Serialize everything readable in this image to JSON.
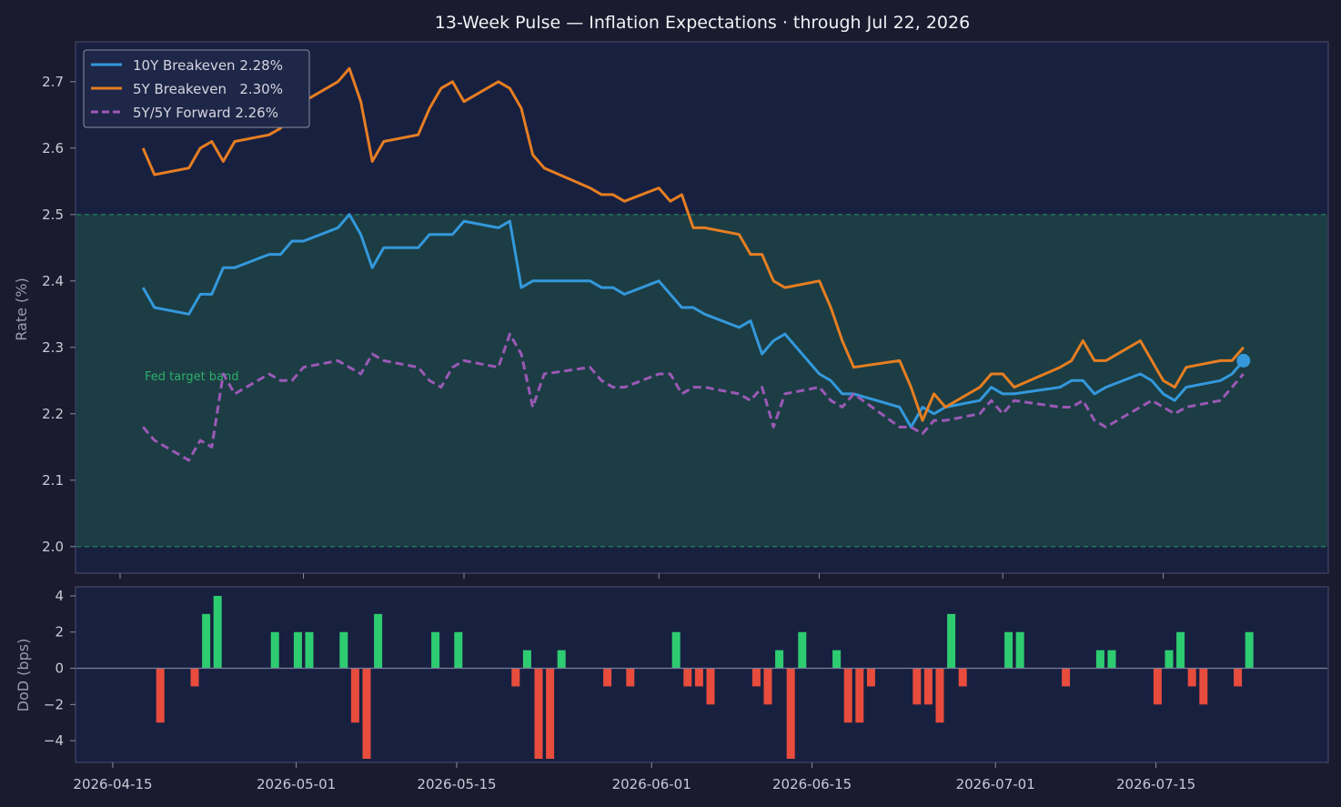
{
  "chart_data": [
    {
      "type": "line",
      "title": "13-Week Pulse — Inflation Expectations  ·  through Jul 22, 2026",
      "ylabel": "Rate (%)",
      "ylim": [
        1.96,
        2.76
      ],
      "yticks": [
        "2.0",
        "2.1",
        "2.2",
        "2.3",
        "2.4",
        "2.5",
        "2.6",
        "2.7"
      ],
      "grid": false,
      "legend": "top-left",
      "band": {
        "low": 2.0,
        "high": 2.5,
        "label": "Fed target band",
        "color": "#2fae6a"
      },
      "dates": [
        "2026-04-17",
        "2026-04-18",
        "2026-04-21",
        "2026-04-22",
        "2026-04-23",
        "2026-04-24",
        "2026-04-25",
        "2026-04-28",
        "2026-04-29",
        "2026-04-30",
        "2026-05-01",
        "2026-05-04",
        "2026-05-05",
        "2026-05-06",
        "2026-05-07",
        "2026-05-08",
        "2026-05-11",
        "2026-05-12",
        "2026-05-13",
        "2026-05-14",
        "2026-05-15",
        "2026-05-18",
        "2026-05-19",
        "2026-05-20",
        "2026-05-21",
        "2026-05-22",
        "2026-05-26",
        "2026-05-27",
        "2026-05-28",
        "2026-05-29",
        "2026-06-01",
        "2026-06-02",
        "2026-06-03",
        "2026-06-04",
        "2026-06-05",
        "2026-06-08",
        "2026-06-09",
        "2026-06-10",
        "2026-06-11",
        "2026-06-12",
        "2026-06-15",
        "2026-06-16",
        "2026-06-17",
        "2026-06-18",
        "2026-06-22",
        "2026-06-23",
        "2026-06-24",
        "2026-06-25",
        "2026-06-26",
        "2026-06-29",
        "2026-06-30",
        "2026-07-01",
        "2026-07-02",
        "2026-07-06",
        "2026-07-07",
        "2026-07-08",
        "2026-07-09",
        "2026-07-10",
        "2026-07-13",
        "2026-07-14",
        "2026-07-15",
        "2026-07-16",
        "2026-07-17",
        "2026-07-20",
        "2026-07-21",
        "2026-07-22"
      ],
      "series": [
        {
          "name": "10Y Breakeven  2.28%",
          "color": "#3498db",
          "dashed": false,
          "last_marker": true,
          "values": [
            2.39,
            2.36,
            2.35,
            2.38,
            2.38,
            2.42,
            2.42,
            2.44,
            2.44,
            2.46,
            2.46,
            2.48,
            2.5,
            2.47,
            2.42,
            2.45,
            2.45,
            2.47,
            2.47,
            2.47,
            2.49,
            2.48,
            2.49,
            2.39,
            2.4,
            2.4,
            2.4,
            2.39,
            2.39,
            2.38,
            2.4,
            2.38,
            2.36,
            2.36,
            2.35,
            2.33,
            2.34,
            2.29,
            2.31,
            2.32,
            2.26,
            2.25,
            2.23,
            2.23,
            2.21,
            2.18,
            2.21,
            2.2,
            2.21,
            2.22,
            2.24,
            2.23,
            2.23,
            2.24,
            2.25,
            2.25,
            2.23,
            2.24,
            2.26,
            2.25,
            2.23,
            2.22,
            2.24,
            2.25,
            2.26,
            2.28
          ]
        },
        {
          "name": "5Y Breakeven   2.30%",
          "color": "#e67e22",
          "dashed": false,
          "last_marker": false,
          "values": [
            2.6,
            2.56,
            2.57,
            2.6,
            2.61,
            2.58,
            2.61,
            2.62,
            2.63,
            2.67,
            2.67,
            2.7,
            2.72,
            2.67,
            2.58,
            2.61,
            2.62,
            2.66,
            2.69,
            2.7,
            2.67,
            2.7,
            2.69,
            2.66,
            2.59,
            2.57,
            2.54,
            2.53,
            2.53,
            2.52,
            2.54,
            2.52,
            2.53,
            2.48,
            2.48,
            2.47,
            2.44,
            2.44,
            2.4,
            2.39,
            2.4,
            2.36,
            2.31,
            2.27,
            2.28,
            2.24,
            2.19,
            2.23,
            2.21,
            2.24,
            2.26,
            2.26,
            2.24,
            2.27,
            2.28,
            2.31,
            2.28,
            2.28,
            2.31,
            2.28,
            2.25,
            2.24,
            2.27,
            2.28,
            2.28,
            2.3
          ]
        },
        {
          "name": "5Y/5Y Forward  2.26%",
          "color": "#9b59b6",
          "dashed": true,
          "last_marker": false,
          "values": [
            2.18,
            2.16,
            2.13,
            2.16,
            2.15,
            2.26,
            2.23,
            2.26,
            2.25,
            2.25,
            2.27,
            2.28,
            2.27,
            2.26,
            2.29,
            2.28,
            2.27,
            2.25,
            2.24,
            2.27,
            2.28,
            2.27,
            2.32,
            2.29,
            2.21,
            2.26,
            2.27,
            2.25,
            2.24,
            2.24,
            2.26,
            2.26,
            2.23,
            2.24,
            2.24,
            2.23,
            2.22,
            2.24,
            2.18,
            2.23,
            2.24,
            2.22,
            2.21,
            2.23,
            2.18,
            2.18,
            2.17,
            2.19,
            2.19,
            2.2,
            2.22,
            2.2,
            2.22,
            2.21,
            2.21,
            2.22,
            2.19,
            2.18,
            2.21,
            2.22,
            2.21,
            2.2,
            2.21,
            2.22,
            2.24,
            2.26
          ]
        }
      ]
    },
    {
      "type": "bar",
      "ylabel": "DoD (bps)",
      "ylim": [
        -5.2,
        4.5
      ],
      "yticks": [
        "4",
        "2",
        "0",
        "−2",
        "−4"
      ],
      "xticks": [
        "2026-04-15",
        "2026-05-01",
        "2026-05-15",
        "2026-06-01",
        "2026-06-15",
        "2026-07-01",
        "2026-07-15"
      ],
      "colors": {
        "positive": "#2ecc71",
        "negative": "#e74c3c"
      },
      "dates": [
        "2026-04-17",
        "2026-04-20",
        "2026-04-21",
        "2026-04-22",
        "2026-04-24",
        "2026-04-25",
        "2026-04-27",
        "2026-04-28",
        "2026-04-29",
        "2026-04-30",
        "2026-05-01",
        "2026-05-03",
        "2026-05-04",
        "2026-05-05",
        "2026-05-06",
        "2026-05-07",
        "2026-05-11",
        "2026-05-13",
        "2026-05-15",
        "2026-05-18",
        "2026-05-19",
        "2026-05-20",
        "2026-05-21",
        "2026-05-22",
        "2026-05-23",
        "2026-05-26",
        "2026-05-27",
        "2026-05-28",
        "2026-05-29",
        "2026-05-31",
        "2026-06-01",
        "2026-06-02",
        "2026-06-03",
        "2026-06-04",
        "2026-06-08",
        "2026-06-09",
        "2026-06-10",
        "2026-06-11",
        "2026-06-12",
        "2026-06-15",
        "2026-06-16",
        "2026-06-17",
        "2026-06-18",
        "2026-06-22",
        "2026-06-23",
        "2026-06-24",
        "2026-06-25",
        "2026-06-26",
        "2026-06-29",
        "2026-06-30",
        "2026-07-01",
        "2026-07-05",
        "2026-07-06",
        "2026-07-08",
        "2026-07-09",
        "2026-07-13",
        "2026-07-14",
        "2026-07-15",
        "2026-07-16",
        "2026-07-17",
        "2026-07-20",
        "2026-07-21",
        "2026-07-22"
      ],
      "values": [
        -3,
        -1,
        3,
        4,
        0,
        0,
        2,
        0,
        2,
        2,
        0,
        2,
        -3,
        -5,
        3,
        0,
        2,
        2,
        0,
        -1,
        1,
        -5,
        -5,
        1,
        0,
        -1,
        0,
        -1,
        0,
        0,
        2,
        -1,
        -1,
        -2,
        -1,
        -2,
        1,
        -5,
        2,
        1,
        -3,
        -3,
        -1,
        -2,
        -2,
        -3,
        3,
        -1,
        0,
        2,
        2,
        -1,
        0,
        1,
        1,
        -2,
        1,
        2,
        -1,
        -2,
        -1,
        2,
        0
      ]
    }
  ]
}
